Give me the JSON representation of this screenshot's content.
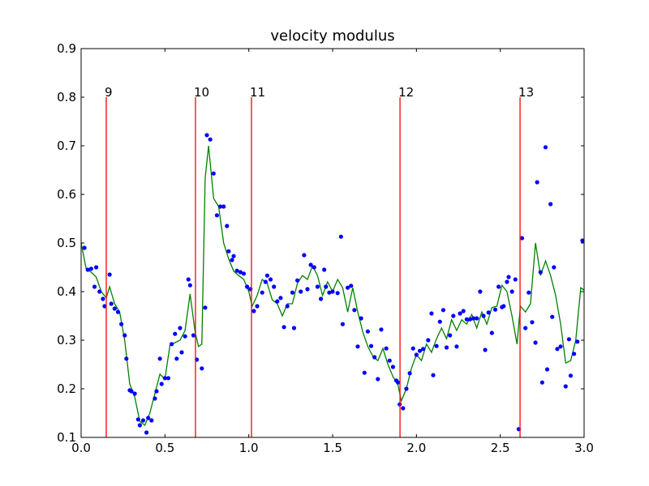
{
  "chart_data": {
    "type": "line",
    "title": "velocity modulus",
    "xlim": [
      0,
      3
    ],
    "ylim": [
      0.1,
      0.9
    ],
    "xticks": [
      {
        "value": 0,
        "label": "0.0"
      },
      0.5,
      {
        "value": 1,
        "label": "1.0"
      },
      1.5,
      {
        "value": 2,
        "label": "2.0"
      },
      2.5,
      {
        "value": 3,
        "label": "3.0"
      }
    ],
    "yticks": [
      0.1,
      0.2,
      0.3,
      0.4,
      0.5,
      0.6,
      0.7,
      0.8,
      0.9
    ],
    "vlines": {
      "color": "#ff0000",
      "ymax": 0.8,
      "lines": [
        {
          "x": 0.15,
          "label": "9"
        },
        {
          "x": 0.682,
          "label": "10"
        },
        {
          "x": 1.016,
          "label": "11"
        },
        {
          "x": 1.902,
          "label": "12"
        },
        {
          "x": 2.618,
          "label": "13"
        }
      ]
    },
    "series": [
      {
        "style": "line",
        "color": "#008000",
        "x": [
          0,
          0.03,
          0.06,
          0.09,
          0.12,
          0.15,
          0.17,
          0.2,
          0.23,
          0.26,
          0.29,
          0.32,
          0.35,
          0.38,
          0.41,
          0.44,
          0.47,
          0.5,
          0.53,
          0.56,
          0.59,
          0.62,
          0.65,
          0.68,
          0.7,
          0.72,
          0.74,
          0.76,
          0.79,
          0.82,
          0.85,
          0.88,
          0.91,
          0.94,
          0.97,
          1.0,
          1.02,
          1.05,
          1.08,
          1.11,
          1.14,
          1.17,
          1.2,
          1.23,
          1.26,
          1.29,
          1.32,
          1.35,
          1.38,
          1.41,
          1.44,
          1.47,
          1.5,
          1.53,
          1.56,
          1.59,
          1.62,
          1.65,
          1.68,
          1.71,
          1.74,
          1.77,
          1.8,
          1.83,
          1.86,
          1.89,
          1.91,
          1.94,
          1.97,
          2.0,
          2.03,
          2.06,
          2.09,
          2.12,
          2.15,
          2.18,
          2.21,
          2.24,
          2.27,
          2.3,
          2.33,
          2.36,
          2.39,
          2.42,
          2.45,
          2.48,
          2.51,
          2.54,
          2.57,
          2.6,
          2.62,
          2.65,
          2.68,
          2.71,
          2.74,
          2.77,
          2.8,
          2.83,
          2.86,
          2.89,
          2.92,
          2.95,
          2.98,
          3.0
        ],
        "values": [
          0.5,
          0.447,
          0.44,
          0.43,
          0.4,
          0.387,
          0.41,
          0.375,
          0.358,
          0.3,
          0.21,
          0.183,
          0.133,
          0.125,
          0.15,
          0.19,
          0.23,
          0.22,
          0.29,
          0.295,
          0.3,
          0.32,
          0.395,
          0.317,
          0.287,
          0.292,
          0.633,
          0.7,
          0.592,
          0.575,
          0.5,
          0.467,
          0.442,
          0.433,
          0.425,
          0.4,
          0.37,
          0.392,
          0.425,
          0.417,
          0.383,
          0.375,
          0.35,
          0.375,
          0.375,
          0.417,
          0.433,
          0.425,
          0.453,
          0.433,
          0.392,
          0.42,
          0.4,
          0.425,
          0.408,
          0.358,
          0.408,
          0.358,
          0.317,
          0.287,
          0.267,
          0.258,
          0.283,
          0.25,
          0.225,
          0.208,
          0.175,
          0.2,
          0.242,
          0.27,
          0.258,
          0.292,
          0.275,
          0.303,
          0.325,
          0.303,
          0.342,
          0.32,
          0.342,
          0.333,
          0.353,
          0.325,
          0.358,
          0.333,
          0.367,
          0.37,
          0.413,
          0.4,
          0.35,
          0.292,
          0.37,
          0.358,
          0.375,
          0.5,
          0.433,
          0.463,
          0.433,
          0.392,
          0.333,
          0.253,
          0.258,
          0.3,
          0.408,
          0.403
        ]
      },
      {
        "style": "points",
        "color": "#0000ff",
        "x": [
          0.02,
          0.04,
          0.06,
          0.08,
          0.09,
          0.11,
          0.13,
          0.14,
          0.17,
          0.18,
          0.2,
          0.22,
          0.24,
          0.26,
          0.27,
          0.29,
          0.3,
          0.32,
          0.34,
          0.35,
          0.37,
          0.39,
          0.4,
          0.42,
          0.44,
          0.45,
          0.47,
          0.48,
          0.5,
          0.52,
          0.54,
          0.56,
          0.57,
          0.59,
          0.6,
          0.62,
          0.64,
          0.65,
          0.67,
          0.69,
          0.72,
          0.74,
          0.75,
          0.77,
          0.79,
          0.81,
          0.83,
          0.85,
          0.87,
          0.88,
          0.9,
          0.91,
          0.93,
          0.95,
          0.97,
          0.99,
          1.01,
          1.03,
          1.05,
          1.08,
          1.1,
          1.11,
          1.13,
          1.15,
          1.17,
          1.19,
          1.21,
          1.23,
          1.26,
          1.27,
          1.29,
          1.31,
          1.33,
          1.35,
          1.37,
          1.39,
          1.41,
          1.43,
          1.45,
          1.46,
          1.48,
          1.5,
          1.53,
          1.55,
          1.56,
          1.59,
          1.61,
          1.63,
          1.65,
          1.67,
          1.69,
          1.71,
          1.73,
          1.75,
          1.77,
          1.79,
          1.82,
          1.84,
          1.86,
          1.88,
          1.89,
          1.9,
          1.92,
          1.94,
          1.96,
          1.98,
          2.0,
          2.02,
          2.04,
          2.07,
          2.09,
          2.1,
          2.12,
          2.14,
          2.16,
          2.18,
          2.2,
          2.22,
          2.24,
          2.26,
          2.28,
          2.3,
          2.32,
          2.34,
          2.36,
          2.38,
          2.4,
          2.41,
          2.43,
          2.45,
          2.47,
          2.49,
          2.51,
          2.52,
          2.54,
          2.55,
          2.57,
          2.59,
          2.61,
          2.63,
          2.65,
          2.67,
          2.69,
          2.71,
          2.72,
          2.74,
          2.75,
          2.77,
          2.78,
          2.8,
          2.81,
          2.82,
          2.84,
          2.86,
          2.89,
          2.91,
          2.92,
          2.94,
          2.96,
          2.99
        ],
        "values": [
          0.49,
          0.445,
          0.447,
          0.41,
          0.45,
          0.4,
          0.385,
          0.37,
          0.435,
          0.375,
          0.365,
          0.358,
          0.333,
          0.31,
          0.262,
          0.197,
          0.195,
          0.19,
          0.137,
          0.125,
          0.135,
          0.11,
          0.14,
          0.135,
          0.18,
          0.195,
          0.262,
          0.21,
          0.222,
          0.222,
          0.292,
          0.313,
          0.262,
          0.325,
          0.275,
          0.308,
          0.425,
          0.413,
          0.31,
          0.26,
          0.242,
          0.367,
          0.722,
          0.713,
          0.643,
          0.557,
          0.575,
          0.575,
          0.535,
          0.483,
          0.465,
          0.473,
          0.443,
          0.44,
          0.437,
          0.41,
          0.405,
          0.36,
          0.37,
          0.398,
          0.42,
          0.433,
          0.425,
          0.41,
          0.38,
          0.387,
          0.327,
          0.37,
          0.398,
          0.325,
          0.423,
          0.4,
          0.475,
          0.405,
          0.455,
          0.45,
          0.41,
          0.385,
          0.445,
          0.41,
          0.398,
          0.4,
          0.397,
          0.513,
          0.333,
          0.408,
          0.412,
          0.362,
          0.287,
          0.345,
          0.233,
          0.318,
          0.288,
          0.265,
          0.22,
          0.322,
          0.283,
          0.258,
          0.245,
          0.217,
          0.213,
          0.168,
          0.16,
          0.2,
          0.232,
          0.283,
          0.27,
          0.278,
          0.282,
          0.3,
          0.355,
          0.228,
          0.288,
          0.338,
          0.362,
          0.285,
          0.31,
          0.35,
          0.287,
          0.355,
          0.36,
          0.343,
          0.343,
          0.345,
          0.345,
          0.4,
          0.35,
          0.28,
          0.357,
          0.315,
          0.363,
          0.41,
          0.368,
          0.37,
          0.42,
          0.43,
          0.4,
          0.425,
          0.117,
          0.51,
          0.325,
          0.398,
          0.337,
          0.295,
          0.625,
          0.44,
          0.213,
          0.697,
          0.24,
          0.58,
          0.348,
          0.45,
          0.282,
          0.287,
          0.205,
          0.302,
          0.227,
          0.272,
          0.297,
          0.505
        ]
      }
    ]
  }
}
